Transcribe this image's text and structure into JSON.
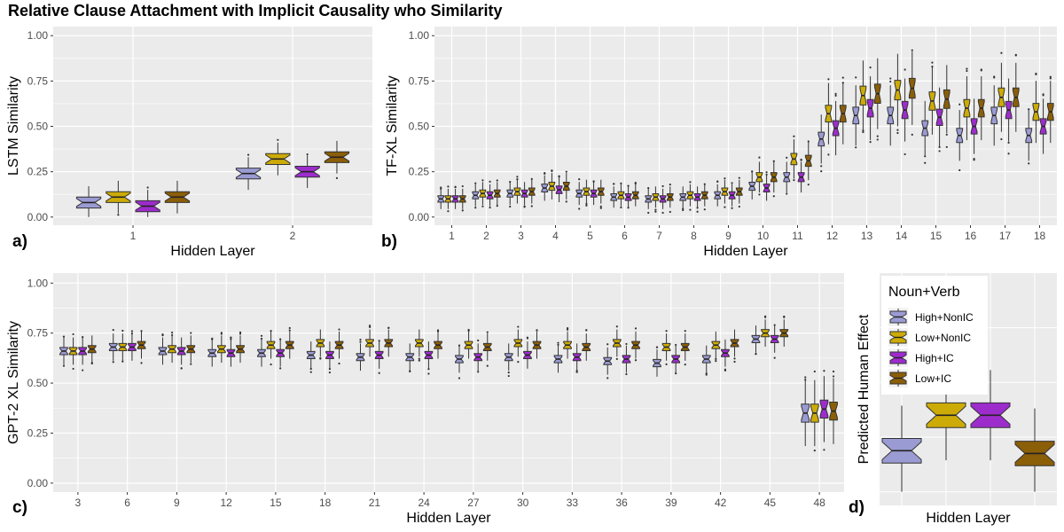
{
  "title": "Relative Clause Attachment with Implicit Causality who Similarity",
  "colors": {
    "High+NonIC": "#9b9bd3",
    "Low+NonIC": "#cdab07",
    "High+IC": "#9d2ccd",
    "Low+IC": "#8b5e08",
    "panel_bg": "#ebebeb",
    "grid": "#ffffff"
  },
  "chart_data": [
    {
      "id": "a",
      "label": "a)",
      "type": "boxplot",
      "ylabel": "LSTM Similarity",
      "xlabel": "Hidden Layer",
      "ylim": [
        0,
        1
      ],
      "yticks": [
        "0.00",
        "0.25",
        "0.50",
        "0.75",
        "1.00"
      ],
      "categories": [
        "1",
        "2"
      ],
      "series": [
        {
          "name": "High+NonIC",
          "medians": [
            0.08,
            0.24
          ]
        },
        {
          "name": "Low+NonIC",
          "medians": [
            0.11,
            0.32
          ]
        },
        {
          "name": "High+IC",
          "medians": [
            0.06,
            0.25
          ]
        },
        {
          "name": "Low+IC",
          "medians": [
            0.11,
            0.33
          ]
        }
      ]
    },
    {
      "id": "b",
      "label": "b)",
      "type": "boxplot",
      "ylabel": "TF-XL Similarity",
      "xlabel": "Hidden Layer",
      "ylim": [
        0,
        1
      ],
      "yticks": [
        "0.00",
        "0.25",
        "0.50",
        "0.75",
        "1.00"
      ],
      "categories": [
        "1",
        "2",
        "3",
        "4",
        "5",
        "6",
        "7",
        "8",
        "9",
        "10",
        "11",
        "12",
        "13",
        "14",
        "15",
        "16",
        "17",
        "18"
      ],
      "series": [
        {
          "name": "High+NonIC",
          "medians": [
            0.1,
            0.12,
            0.13,
            0.16,
            0.13,
            0.11,
            0.1,
            0.11,
            0.12,
            0.17,
            0.22,
            0.43,
            0.56,
            0.56,
            0.49,
            0.45,
            0.56,
            0.45
          ]
        },
        {
          "name": "Low+NonIC",
          "medians": [
            0.1,
            0.13,
            0.14,
            0.17,
            0.14,
            0.12,
            0.11,
            0.12,
            0.14,
            0.22,
            0.32,
            0.57,
            0.67,
            0.7,
            0.64,
            0.6,
            0.66,
            0.58
          ]
        },
        {
          "name": "High+IC",
          "medians": [
            0.1,
            0.12,
            0.13,
            0.15,
            0.13,
            0.11,
            0.1,
            0.11,
            0.12,
            0.16,
            0.22,
            0.49,
            0.6,
            0.59,
            0.55,
            0.5,
            0.59,
            0.5
          ]
        },
        {
          "name": "Low+IC",
          "medians": [
            0.1,
            0.13,
            0.14,
            0.17,
            0.14,
            0.12,
            0.11,
            0.12,
            0.14,
            0.22,
            0.31,
            0.57,
            0.68,
            0.71,
            0.65,
            0.6,
            0.66,
            0.58
          ]
        }
      ]
    },
    {
      "id": "c",
      "label": "c)",
      "type": "boxplot",
      "ylabel": "GPT-2 XL Similarity",
      "xlabel": "Hidden Layer",
      "ylim": [
        0,
        1
      ],
      "yticks": [
        "0.00",
        "0.25",
        "0.50",
        "0.75",
        "1.00"
      ],
      "categories": [
        "3",
        "6",
        "9",
        "12",
        "15",
        "18",
        "21",
        "24",
        "27",
        "30",
        "33",
        "36",
        "39",
        "42",
        "45",
        "48"
      ],
      "series": [
        {
          "name": "High+NonIC",
          "medians": [
            0.66,
            0.68,
            0.66,
            0.65,
            0.65,
            0.64,
            0.63,
            0.63,
            0.62,
            0.63,
            0.62,
            0.61,
            0.6,
            0.62,
            0.72,
            0.35
          ]
        },
        {
          "name": "Low+NonIC",
          "medians": [
            0.66,
            0.68,
            0.67,
            0.67,
            0.69,
            0.7,
            0.7,
            0.7,
            0.69,
            0.7,
            0.69,
            0.7,
            0.68,
            0.69,
            0.75,
            0.35
          ]
        },
        {
          "name": "High+IC",
          "medians": [
            0.66,
            0.68,
            0.66,
            0.65,
            0.65,
            0.64,
            0.64,
            0.64,
            0.63,
            0.64,
            0.63,
            0.62,
            0.62,
            0.65,
            0.72,
            0.37
          ]
        },
        {
          "name": "Low+IC",
          "medians": [
            0.67,
            0.69,
            0.67,
            0.67,
            0.69,
            0.69,
            0.7,
            0.69,
            0.68,
            0.69,
            0.68,
            0.69,
            0.68,
            0.7,
            0.75,
            0.36
          ]
        }
      ]
    },
    {
      "id": "d",
      "label": "d)",
      "type": "boxplot",
      "ylabel": "Predicted Human Effect",
      "xlabel": "Hidden Layer",
      "legend": {
        "title": "Noun+Verb",
        "entries": [
          "High+NonIC",
          "Low+NonIC",
          "High+IC",
          "Low+IC"
        ],
        "placement": "top-left"
      },
      "series": [
        {
          "name": "High+NonIC",
          "median": 0.15
        },
        {
          "name": "Low+NonIC",
          "median": 0.28
        },
        {
          "name": "High+IC",
          "median": 0.28
        },
        {
          "name": "Low+IC",
          "median": 0.14
        }
      ]
    }
  ]
}
